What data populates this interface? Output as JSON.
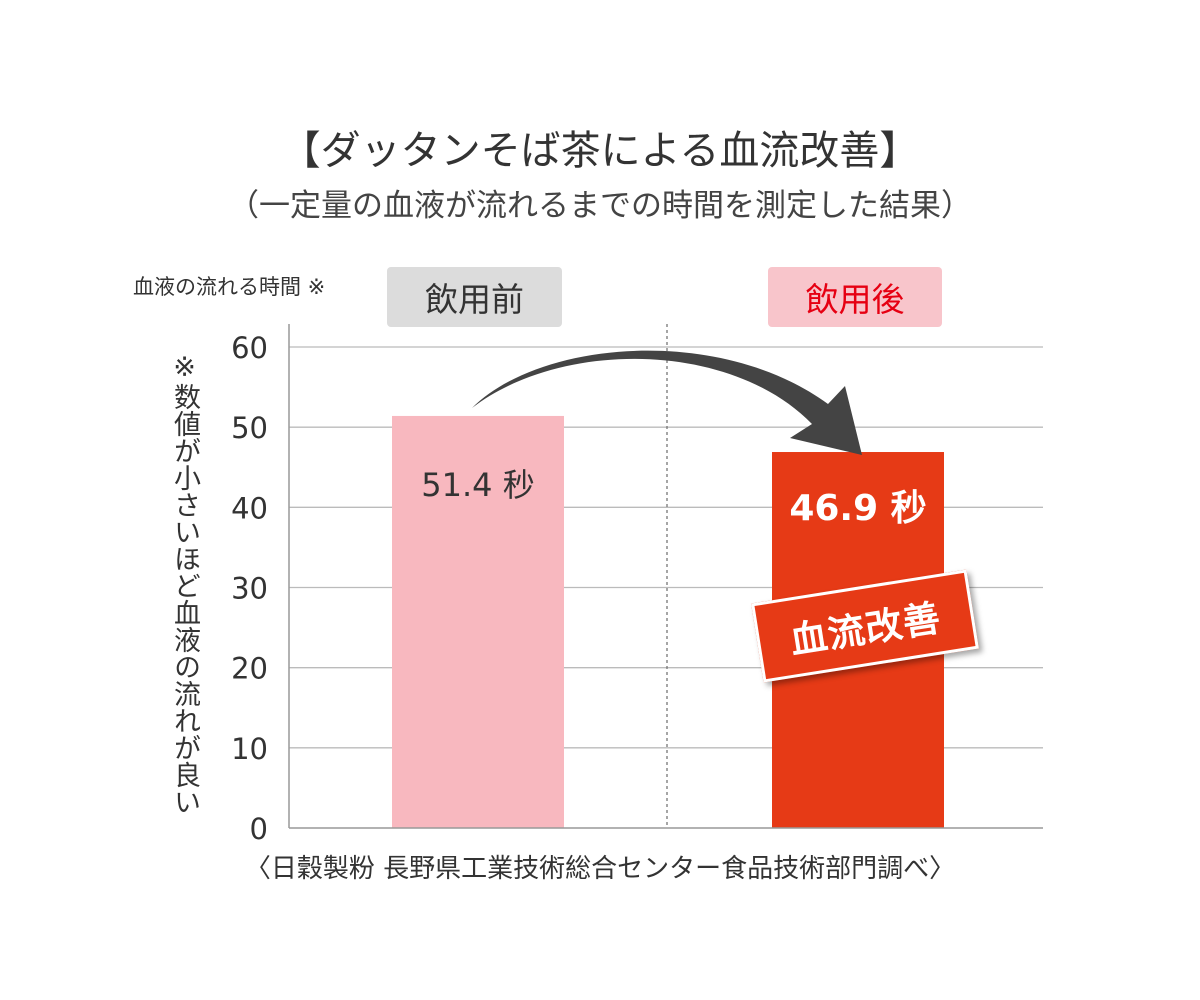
{
  "header": {
    "title": "【ダッタンそば茶による血流改善】",
    "subtitle": "（一定量の血液が流れるまでの時間を測定した結果）"
  },
  "unit_label": "血液の流れる時間 ※",
  "headers": {
    "before": "飲用前",
    "after": "飲用後"
  },
  "yaxis_note": "※数値が小さいほど血液の流れが良い",
  "badge": "血流改善",
  "source": "〈日穀製粉 長野県工業技術総合センター食品技術部門調べ〉",
  "colors": {
    "before_bar": "#f8b8bf",
    "after_bar": "#e63a16",
    "arrow": "#444444",
    "after_header_text": "#e60012"
  },
  "chart_data": {
    "type": "bar",
    "categories": [
      "飲用前",
      "飲用後"
    ],
    "values": [
      51.4,
      46.9
    ],
    "data_labels": [
      "51.4 秒",
      "46.9 秒"
    ],
    "ylim": [
      0,
      60
    ],
    "yticks": [
      0,
      10,
      20,
      30,
      40,
      50,
      60
    ],
    "grid": true,
    "legend": "none"
  }
}
